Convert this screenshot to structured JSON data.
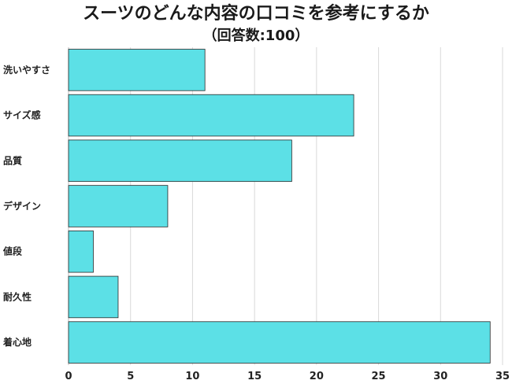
{
  "chart_data": {
    "type": "bar",
    "orientation": "horizontal",
    "title": "スーツのどんな内容の口コミを参考にするか",
    "subtitle": "（回答数:100）",
    "categories": [
      "洗いやすさ",
      "サイズ感",
      "品質",
      "デザイン",
      "値段",
      "耐久性",
      "着心地"
    ],
    "values": [
      11,
      23,
      18,
      8,
      2,
      4,
      34
    ],
    "xlim": [
      0,
      35
    ],
    "x_ticks": [
      "0",
      "5",
      "10",
      "15",
      "20",
      "25",
      "30",
      "35"
    ],
    "grid": "vertical",
    "bar_color": "#5ce0e6",
    "bar_border_color": "#2a2a2a"
  }
}
